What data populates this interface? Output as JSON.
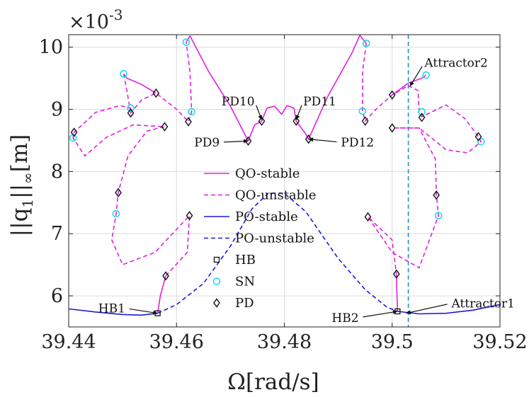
{
  "chart_data": {
    "type": "line",
    "xlabel": "Ω[rad/s]",
    "ylabel": "||q1||∞[m]",
    "ylabel_parts": {
      "norm_open": "||q",
      "subscript": "1",
      "norm_close": "||",
      "inf": "∞",
      "unit": "[m]"
    },
    "y_multiplier": "×10",
    "y_multiplier_exp": "-3",
    "xlim": [
      39.44,
      39.52
    ],
    "ylim": [
      5.5,
      10.2
    ],
    "xticks": [
      39.44,
      39.46,
      39.48,
      39.5,
      39.52
    ],
    "xtick_labels": [
      "39.44",
      "39.46",
      "39.48",
      "39.5",
      "39.52"
    ],
    "yticks": [
      6,
      7,
      8,
      9,
      10
    ],
    "ytick_labels": [
      "6",
      "7",
      "8",
      "9",
      "10"
    ],
    "grid": true,
    "legend_position": "center",
    "legend": [
      {
        "label": "QO-stable",
        "style": "solid",
        "color": "#e020e0",
        "kind": "line"
      },
      {
        "label": "QO-unstable",
        "style": "dashed",
        "color": "#e020e0",
        "kind": "line"
      },
      {
        "label": "PO-stable",
        "style": "solid",
        "color": "#1a1adc",
        "kind": "line"
      },
      {
        "label": "PO-unstable",
        "style": "dashed",
        "color": "#1a1adc",
        "kind": "line"
      },
      {
        "label": "HB",
        "kind": "square"
      },
      {
        "label": "SN",
        "kind": "circle"
      },
      {
        "label": "PD",
        "kind": "diamond"
      }
    ],
    "vline": {
      "x": 39.503,
      "color": "#2a8ad0",
      "style": "dashed"
    },
    "series": [
      {
        "name": "PO-stable",
        "color": "#1a1adc",
        "style": "solid",
        "points": [
          [
            39.44,
            5.79
          ],
          [
            39.445,
            5.74
          ],
          [
            39.45,
            5.7
          ],
          [
            39.4535,
            5.69
          ],
          [
            39.4565,
            5.72
          ]
        ]
      },
      {
        "name": "PO-stable",
        "color": "#1a1adc",
        "style": "solid",
        "points": [
          [
            39.501,
            5.75
          ],
          [
            39.505,
            5.71
          ],
          [
            39.51,
            5.72
          ],
          [
            39.515,
            5.77
          ],
          [
            39.52,
            5.86
          ]
        ]
      },
      {
        "name": "PO-unstable",
        "color": "#1a1adc",
        "style": "dashed",
        "points": [
          [
            39.4565,
            5.72
          ],
          [
            39.46,
            5.86
          ],
          [
            39.465,
            6.2
          ],
          [
            39.47,
            6.8
          ],
          [
            39.474,
            7.4
          ],
          [
            39.477,
            7.65
          ],
          [
            39.48,
            7.65
          ],
          [
            39.484,
            7.35
          ],
          [
            39.49,
            6.6
          ],
          [
            39.495,
            6.1
          ],
          [
            39.499,
            5.82
          ],
          [
            39.501,
            5.75
          ]
        ]
      },
      {
        "name": "QO-stable",
        "color": "#e020e0",
        "style": "solid",
        "points": [
          [
            39.4565,
            5.72
          ],
          [
            39.457,
            6.0
          ],
          [
            39.458,
            6.32
          ]
        ]
      },
      {
        "name": "QO-unstable",
        "color": "#e020e0",
        "style": "dashed",
        "points": [
          [
            39.458,
            6.32
          ],
          [
            39.462,
            6.7
          ],
          [
            39.4624,
            7.29
          ],
          [
            39.456,
            6.7
          ],
          [
            39.45,
            6.5
          ],
          [
            39.448,
            6.9
          ],
          [
            39.4488,
            7.32
          ],
          [
            39.4492,
            7.66
          ],
          [
            39.451,
            8.25
          ],
          [
            39.4545,
            8.65
          ],
          [
            39.4578,
            8.72
          ],
          [
            39.452,
            8.75
          ],
          [
            39.447,
            8.55
          ],
          [
            39.443,
            8.25
          ],
          [
            39.4408,
            8.54
          ],
          [
            39.441,
            8.63
          ],
          [
            39.445,
            8.95
          ],
          [
            39.4495,
            9.06
          ],
          [
            39.4515,
            9.02
          ],
          [
            39.4515,
            8.94
          ],
          [
            39.4535,
            9.15
          ],
          [
            39.4562,
            9.26
          ],
          [
            39.46,
            9.0
          ],
          [
            39.4622,
            8.8
          ],
          [
            39.4628,
            8.96
          ],
          [
            39.4625,
            9.6
          ],
          [
            39.4618,
            10.08
          ]
        ]
      },
      {
        "name": "QO-stable",
        "color": "#e020e0",
        "style": "solid",
        "points": [
          [
            39.4502,
            9.57
          ],
          [
            39.4508,
            9.5
          ],
          [
            39.4535,
            9.4
          ],
          [
            39.4562,
            9.26
          ]
        ]
      },
      {
        "name": "QO-unstable",
        "color": "#e020e0",
        "style": "dashed",
        "points": [
          [
            39.4502,
            9.57
          ],
          [
            39.4508,
            9.3
          ],
          [
            39.4515,
            8.94
          ]
        ]
      },
      {
        "name": "QO-stable",
        "color": "#e020e0",
        "style": "solid",
        "points": [
          [
            39.4618,
            10.08
          ],
          [
            39.4625,
            10.18
          ],
          [
            39.466,
            9.6
          ],
          [
            39.47,
            9.05
          ],
          [
            39.4733,
            8.49
          ],
          [
            39.4745,
            8.75
          ],
          [
            39.4758,
            8.81
          ],
          [
            39.4768,
            9.02
          ],
          [
            39.4782,
            9.05
          ],
          [
            39.4795,
            8.92
          ],
          [
            39.4805,
            9.06
          ],
          [
            39.4818,
            9.02
          ],
          [
            39.4822,
            8.81
          ],
          [
            39.484,
            8.6
          ],
          [
            39.4845,
            8.52
          ],
          [
            39.488,
            9.2
          ],
          [
            39.4925,
            9.9
          ],
          [
            39.494,
            10.19
          ],
          [
            39.4952,
            10.06
          ]
        ]
      },
      {
        "name": "QO-unstable",
        "color": "#e020e0",
        "style": "dashed",
        "points": [
          [
            39.4952,
            10.06
          ],
          [
            39.4945,
            9.6
          ],
          [
            39.4945,
            8.97
          ],
          [
            39.495,
            8.81
          ],
          [
            39.497,
            9.0
          ],
          [
            39.5,
            9.23
          ],
          [
            39.503,
            9.38
          ],
          [
            39.5048,
            9.3
          ],
          [
            39.505,
            8.95
          ],
          [
            39.5055,
            8.88
          ],
          [
            39.51,
            9.07
          ],
          [
            39.5135,
            8.85
          ],
          [
            39.516,
            8.56
          ],
          [
            39.5165,
            8.48
          ],
          [
            39.514,
            8.3
          ],
          [
            39.51,
            8.35
          ],
          [
            39.505,
            8.7
          ],
          [
            39.5007,
            8.7
          ],
          [
            39.505,
            8.7
          ],
          [
            39.508,
            8.2
          ],
          [
            39.5082,
            7.62
          ],
          [
            39.5086,
            7.29
          ],
          [
            39.505,
            6.45
          ],
          [
            39.5,
            6.7
          ],
          [
            39.4955,
            7.27
          ],
          [
            39.5,
            6.9
          ],
          [
            39.5008,
            6.35
          ]
        ]
      },
      {
        "name": "QO-stable",
        "color": "#e020e0",
        "style": "solid",
        "points": [
          [
            39.5,
            9.23
          ],
          [
            39.503,
            9.42
          ],
          [
            39.5055,
            9.5
          ],
          [
            39.5063,
            9.55
          ]
        ]
      },
      {
        "name": "QO-stable",
        "color": "#e020e0",
        "style": "solid",
        "points": [
          [
            39.5008,
            6.35
          ],
          [
            39.5009,
            6.0
          ],
          [
            39.501,
            5.75
          ]
        ]
      }
    ],
    "markers": {
      "HB": [
        [
          39.4565,
          5.72
        ],
        [
          39.501,
          5.75
        ]
      ],
      "SN": [
        [
          39.4408,
          8.54
        ],
        [
          39.4488,
          7.32
        ],
        [
          39.4502,
          9.57
        ],
        [
          39.4515,
          9.02
        ],
        [
          39.4618,
          10.08
        ],
        [
          39.4628,
          8.96
        ],
        [
          39.4952,
          10.06
        ],
        [
          39.4945,
          8.97
        ],
        [
          39.5063,
          9.55
        ],
        [
          39.5055,
          8.96
        ],
        [
          39.5086,
          7.29
        ],
        [
          39.5165,
          8.48
        ]
      ],
      "PD": [
        [
          39.441,
          8.63
        ],
        [
          39.4492,
          7.66
        ],
        [
          39.4515,
          8.94
        ],
        [
          39.4562,
          9.26
        ],
        [
          39.4578,
          8.72
        ],
        [
          39.4622,
          8.8
        ],
        [
          39.4624,
          7.29
        ],
        [
          39.458,
          6.32
        ],
        [
          39.4733,
          8.49
        ],
        [
          39.4758,
          8.81
        ],
        [
          39.4822,
          8.81
        ],
        [
          39.4845,
          8.52
        ],
        [
          39.495,
          8.81
        ],
        [
          39.4955,
          7.27
        ],
        [
          39.5,
          9.23
        ],
        [
          39.5,
          8.7
        ],
        [
          39.5055,
          8.87
        ],
        [
          39.5082,
          7.62
        ],
        [
          39.5008,
          6.35
        ],
        [
          39.516,
          8.56
        ]
      ]
    },
    "annotations": [
      {
        "text": "Attractor2",
        "target": [
          39.5033,
          9.37
        ],
        "text_at": [
          39.506,
          9.75
        ]
      },
      {
        "text": "Attractor1",
        "target": [
          39.5026,
          5.72
        ],
        "text_at": [
          39.511,
          5.88
        ]
      },
      {
        "text": "HB1",
        "target": [
          39.4565,
          5.72
        ],
        "text_at": [
          39.4505,
          5.8
        ]
      },
      {
        "text": "HB2",
        "target": [
          39.501,
          5.75
        ],
        "text_at": [
          39.4938,
          5.65
        ]
      },
      {
        "text": "PD9",
        "target": [
          39.4733,
          8.49
        ],
        "text_at": [
          39.468,
          8.47
        ]
      },
      {
        "text": "PD10",
        "target": [
          39.4758,
          8.83
        ],
        "text_at": [
          39.4745,
          9.13
        ]
      },
      {
        "text": "PD11",
        "target": [
          39.4822,
          8.83
        ],
        "text_at": [
          39.4835,
          9.13
        ]
      },
      {
        "text": "PD12",
        "target": [
          39.4845,
          8.52
        ],
        "text_at": [
          39.4905,
          8.47
        ]
      }
    ]
  }
}
